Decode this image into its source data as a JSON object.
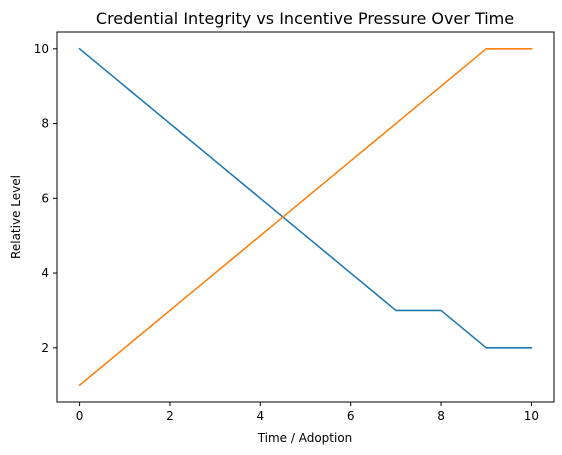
{
  "chart_data": {
    "type": "line",
    "title": "Credential Integrity vs Incentive Pressure Over Time",
    "xlabel": "Time / Adoption",
    "ylabel": "Relative Level",
    "x": [
      0,
      1,
      2,
      3,
      4,
      5,
      6,
      7,
      8,
      9,
      10
    ],
    "xlim": [
      -0.5,
      10.5
    ],
    "ylim": [
      0.55,
      10.45
    ],
    "xticks": [
      0,
      2,
      4,
      6,
      8,
      10
    ],
    "yticks": [
      2,
      4,
      6,
      8,
      10
    ],
    "grid": false,
    "series": [
      {
        "color": "#1f77b4",
        "values": [
          10,
          9,
          8,
          7,
          6,
          5,
          4,
          3,
          3,
          2,
          2
        ]
      },
      {
        "color": "#ff7f0e",
        "values": [
          1,
          2,
          3,
          4,
          5,
          6,
          7,
          8,
          9,
          10,
          10
        ]
      }
    ]
  }
}
